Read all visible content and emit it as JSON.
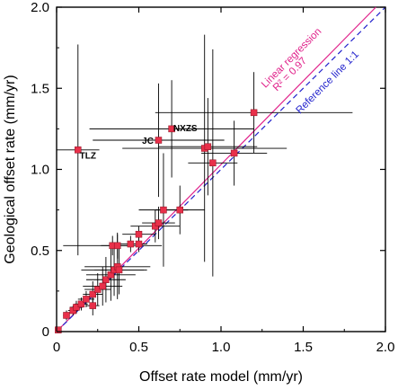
{
  "chart_data": {
    "type": "scatter",
    "xlabel": "Offset rate model (mm/yr)",
    "ylabel": "Geological offset rate (mm/yr)",
    "xlim": [
      0,
      2.0
    ],
    "ylim": [
      0,
      2.0
    ],
    "xticks": [
      "0",
      "0.5",
      "1.0",
      "1.5",
      "2.0"
    ],
    "yticks": [
      "0",
      "0.5",
      "1.0",
      "1.5",
      "2.0"
    ],
    "grid": false,
    "point_color": "#e8304a",
    "errorbar_color": "#000000",
    "points": [
      {
        "x": 0.01,
        "y": 0.01,
        "xerr": 0.01,
        "yerr": 0.01
      },
      {
        "x": 0.06,
        "y": 0.1,
        "xerr": 0.02,
        "yerr": 0.03
      },
      {
        "x": 0.1,
        "y": 0.13,
        "xerr": 0.03,
        "yerr": 0.03
      },
      {
        "x": 0.12,
        "y": 0.15,
        "xerr": 0.04,
        "yerr": 0.04
      },
      {
        "x": 0.15,
        "y": 0.17,
        "xerr": 0.04,
        "yerr": 0.04
      },
      {
        "x": 0.18,
        "y": 0.2,
        "xerr": 0.05,
        "yerr": 0.05
      },
      {
        "x": 0.22,
        "y": 0.16,
        "xerr": 0.04,
        "yerr": 0.06
      },
      {
        "x": 0.22,
        "y": 0.23,
        "xerr": 0.06,
        "yerr": 0.08
      },
      {
        "x": 0.25,
        "y": 0.26,
        "xerr": 0.08,
        "yerr": 0.1
      },
      {
        "x": 0.28,
        "y": 0.28,
        "xerr": 0.12,
        "yerr": 0.12
      },
      {
        "x": 0.3,
        "y": 0.32,
        "xerr": 0.12,
        "yerr": 0.14
      },
      {
        "x": 0.33,
        "y": 0.35,
        "xerr": 0.15,
        "yerr": 0.16
      },
      {
        "x": 0.35,
        "y": 0.38,
        "xerr": 0.2,
        "yerr": 0.16
      },
      {
        "x": 0.37,
        "y": 0.4,
        "xerr": 0.2,
        "yerr": 0.2
      },
      {
        "x": 0.38,
        "y": 0.38,
        "xerr": 0.15,
        "yerr": 0.15
      },
      {
        "x": 0.34,
        "y": 0.53,
        "xerr": 0.3,
        "yerr": 0.06
      },
      {
        "x": 0.37,
        "y": 0.53,
        "xerr": 0.1,
        "yerr": 0.08
      },
      {
        "x": 0.45,
        "y": 0.54,
        "xerr": 0.1,
        "yerr": 0.05
      },
      {
        "x": 0.5,
        "y": 0.54,
        "xerr": 0.05,
        "yerr": 0.05
      },
      {
        "x": 0.5,
        "y": 0.6,
        "xerr": 0.1,
        "yerr": 0.05
      },
      {
        "x": 0.6,
        "y": 0.65,
        "xerr": 0.15,
        "yerr": 0.1
      },
      {
        "x": 0.62,
        "y": 0.67,
        "xerr": 0.1,
        "yerr": 0.1
      },
      {
        "x": 0.65,
        "y": 0.75,
        "xerr": 0.15,
        "yerr": 0.35
      },
      {
        "x": 0.75,
        "y": 0.75,
        "xerr": 0.15,
        "yerr": 0.15
      },
      {
        "x": 0.13,
        "y": 1.12,
        "xerr": 0.13,
        "yerr": 0.65
      },
      {
        "x": 0.62,
        "y": 1.18,
        "xerr": 0.4,
        "yerr": 0.35
      },
      {
        "x": 0.7,
        "y": 1.25,
        "xerr": 0.5,
        "yerr": 0.3
      },
      {
        "x": 0.9,
        "y": 1.13,
        "xerr": 0.5,
        "yerr": 0.7
      },
      {
        "x": 0.92,
        "y": 1.14,
        "xerr": 0.3,
        "yerr": 0.3
      },
      {
        "x": 0.95,
        "y": 1.04,
        "xerr": 0.15,
        "yerr": 0.7
      },
      {
        "x": 1.08,
        "y": 1.1,
        "xerr": 0.2,
        "yerr": 0.2
      },
      {
        "x": 1.2,
        "y": 1.35,
        "xerr": 0.6,
        "yerr": 0.25
      }
    ],
    "annotations": [
      {
        "text": "TLZ",
        "x": 0.14,
        "y": 1.1
      },
      {
        "text": "JC",
        "x": 0.52,
        "y": 1.19
      },
      {
        "text": "NXZS",
        "x": 0.71,
        "y": 1.27
      }
    ],
    "lines": [
      {
        "name": "regression",
        "color": "#e0208a",
        "dash": "solid",
        "points": [
          [
            0,
            0
          ],
          [
            2.0,
            2.06
          ]
        ],
        "label": "Linear regression",
        "label2": "R² = 0.97"
      },
      {
        "name": "reference",
        "color": "#2222cc",
        "dash": "dashed",
        "points": [
          [
            0,
            0
          ],
          [
            2.0,
            2.0
          ]
        ],
        "label": "Reference line 1:1"
      }
    ]
  }
}
